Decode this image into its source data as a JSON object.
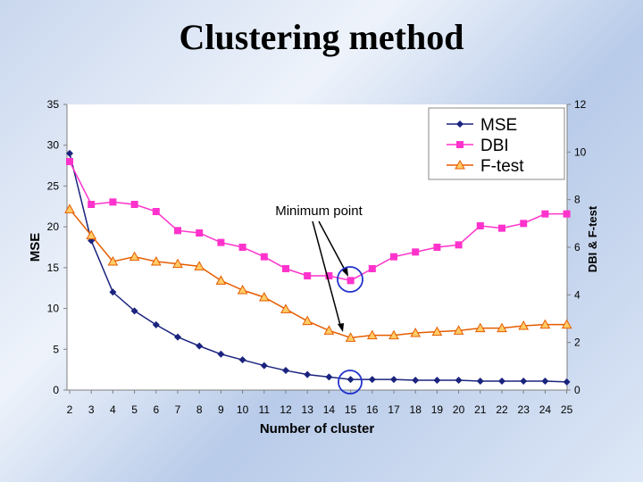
{
  "slide": {
    "title": "Clustering method"
  },
  "chart_data": {
    "type": "line",
    "xlabel": "Number of cluster",
    "ylabel_left": "MSE",
    "ylabel_right": "DBI & F-test",
    "ylim_left": [
      0,
      35
    ],
    "ylim_right": [
      0,
      12
    ],
    "left_ticks": [
      0,
      5,
      10,
      15,
      20,
      25,
      30,
      35
    ],
    "right_ticks": [
      0,
      2,
      4,
      6,
      8,
      10,
      12
    ],
    "categories": [
      "2",
      "3",
      "4",
      "5",
      "6",
      "7",
      "8",
      "9",
      "10",
      "11",
      "12",
      "13",
      "14",
      "15",
      "16",
      "17",
      "18",
      "19",
      "20",
      "21",
      "22",
      "23",
      "24",
      "25"
    ],
    "series": [
      {
        "name": "MSE",
        "axis": "left",
        "color": "#1a237e",
        "marker": "diamond",
        "values": [
          29,
          18.3,
          12,
          9.7,
          8,
          6.5,
          5.4,
          4.4,
          3.7,
          3.0,
          2.4,
          1.9,
          1.6,
          1.3,
          1.3,
          1.3,
          1.2,
          1.2,
          1.2,
          1.1,
          1.1,
          1.1,
          1.1,
          1.0
        ]
      },
      {
        "name": "DBI",
        "axis": "right",
        "color": "#ff33cc",
        "marker": "square",
        "values": [
          9.6,
          7.8,
          7.9,
          7.8,
          7.5,
          6.7,
          6.6,
          6.2,
          6.0,
          5.6,
          5.1,
          4.8,
          4.8,
          4.6,
          5.1,
          5.6,
          5.8,
          6.0,
          6.1,
          6.9,
          6.8,
          7.0,
          7.4,
          7.4
        ]
      },
      {
        "name": "F-test",
        "axis": "right",
        "color": "#e65c00",
        "marker": "triangle",
        "fill": "#ffcc66",
        "values": [
          7.6,
          6.5,
          5.4,
          5.6,
          5.4,
          5.3,
          5.2,
          4.6,
          4.2,
          3.9,
          3.4,
          2.9,
          2.5,
          2.2,
          2.3,
          2.3,
          2.4,
          2.45,
          2.5,
          2.6,
          2.6,
          2.7,
          2.75,
          2.75
        ]
      }
    ],
    "annotation": {
      "text": "Minimum point",
      "category": "15",
      "targets": [
        "DBI",
        "F-test"
      ]
    }
  }
}
